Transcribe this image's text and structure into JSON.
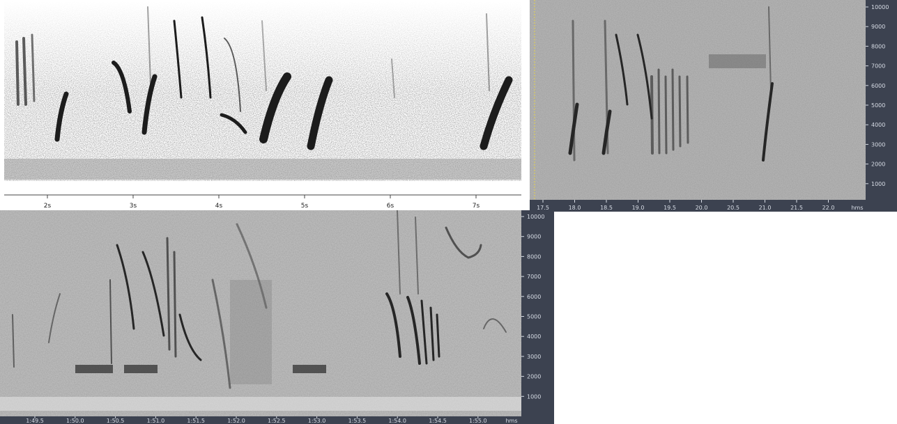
{
  "panel_a": {
    "time_ticks": [
      "2s",
      "3s",
      "4s",
      "5s",
      "6s",
      "7s"
    ]
  },
  "panel_b": {
    "time_ticks": [
      "17.5",
      "18.0",
      "18.5",
      "19.0",
      "19.5",
      "20.0",
      "20.5",
      "21.0",
      "21.5",
      "22.0"
    ],
    "time_unit": "hms",
    "freq_ticks": [
      "10000",
      "9000",
      "8000",
      "7000",
      "6000",
      "5000",
      "4000",
      "3000",
      "2000",
      "1000"
    ]
  },
  "panel_c": {
    "time_ticks": [
      "1:49.5",
      "1:50.0",
      "1:50.5",
      "1:51.0",
      "1:51.5",
      "1:52.0",
      "1:52.5",
      "1:53.0",
      "1:53.5",
      "1:54.0",
      "1:54.5",
      "1:55.0"
    ],
    "time_unit": "hms",
    "freq_ticks": [
      "10000",
      "9000",
      "8000",
      "7000",
      "6000",
      "5000",
      "4000",
      "3000",
      "2000",
      "1000"
    ]
  },
  "colors": {
    "axis_bar": "#3c4250",
    "axis_text": "#d8dde6",
    "spectrogram_bg": "#b8b8b8",
    "call_ink": "#1e1e1e"
  }
}
